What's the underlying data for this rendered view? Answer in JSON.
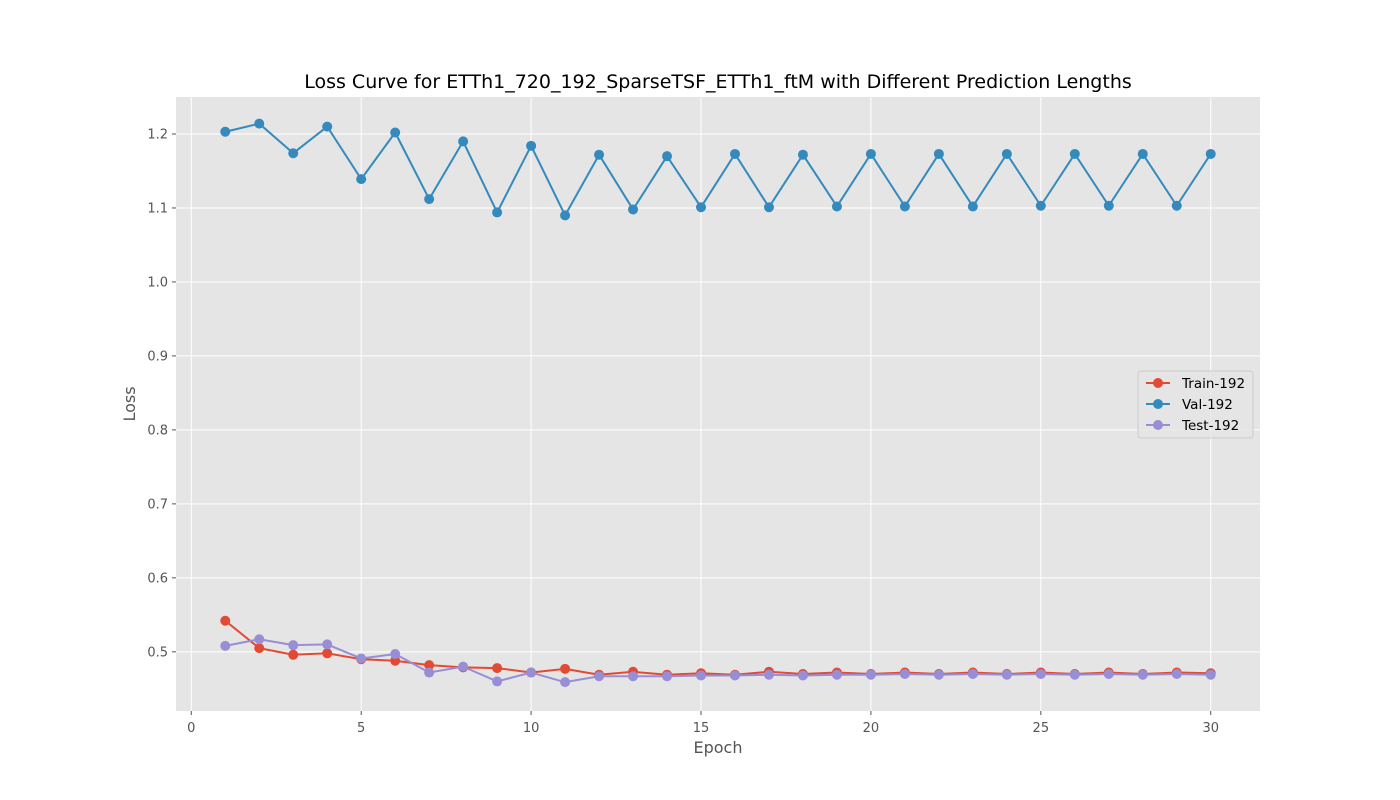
{
  "chart_data": {
    "type": "line",
    "title": "Loss Curve for ETTh1_720_192_SparseTSF_ETTh1_ftM with Different Prediction Lengths",
    "xlabel": "Epoch",
    "ylabel": "Loss",
    "xlim": [
      -0.45,
      31.45
    ],
    "ylim": [
      0.42,
      1.25
    ],
    "xticks": [
      0,
      5,
      10,
      15,
      20,
      25,
      30
    ],
    "xtick_labels": [
      "0",
      "5",
      "10",
      "15",
      "20",
      "25",
      "30"
    ],
    "yticks": [
      0.5,
      0.6,
      0.7,
      0.8,
      0.9,
      1.0,
      1.1,
      1.2
    ],
    "ytick_labels": [
      "0.5",
      "0.6",
      "0.7",
      "0.8",
      "0.9",
      "1.0",
      "1.1",
      "1.2"
    ],
    "grid": true,
    "legend_position": "center-right",
    "x": [
      1,
      2,
      3,
      4,
      5,
      6,
      7,
      8,
      9,
      10,
      11,
      12,
      13,
      14,
      15,
      16,
      17,
      18,
      19,
      20,
      21,
      22,
      23,
      24,
      25,
      26,
      27,
      28,
      29,
      30
    ],
    "series": [
      {
        "name": "Train-192",
        "color": "#E24A33",
        "values": [
          0.542,
          0.505,
          0.496,
          0.498,
          0.49,
          0.488,
          0.482,
          0.479,
          0.478,
          0.472,
          0.477,
          0.469,
          0.473,
          0.469,
          0.471,
          0.469,
          0.473,
          0.47,
          0.472,
          0.47,
          0.472,
          0.47,
          0.472,
          0.47,
          0.472,
          0.47,
          0.472,
          0.47,
          0.472,
          0.471
        ]
      },
      {
        "name": "Val-192",
        "color": "#348ABD",
        "values": [
          1.203,
          1.214,
          1.174,
          1.21,
          1.139,
          1.202,
          1.112,
          1.19,
          1.094,
          1.184,
          1.09,
          1.172,
          1.098,
          1.17,
          1.101,
          1.173,
          1.101,
          1.172,
          1.102,
          1.173,
          1.102,
          1.173,
          1.102,
          1.173,
          1.103,
          1.173,
          1.103,
          1.173,
          1.103,
          1.173
        ]
      },
      {
        "name": "Test-192",
        "color": "#988ED5",
        "values": [
          0.508,
          0.517,
          0.509,
          0.51,
          0.491,
          0.497,
          0.472,
          0.48,
          0.46,
          0.472,
          0.459,
          0.467,
          0.467,
          0.467,
          0.468,
          0.468,
          0.469,
          0.468,
          0.469,
          0.469,
          0.47,
          0.469,
          0.47,
          0.469,
          0.47,
          0.469,
          0.47,
          0.469,
          0.47,
          0.469
        ]
      }
    ]
  }
}
